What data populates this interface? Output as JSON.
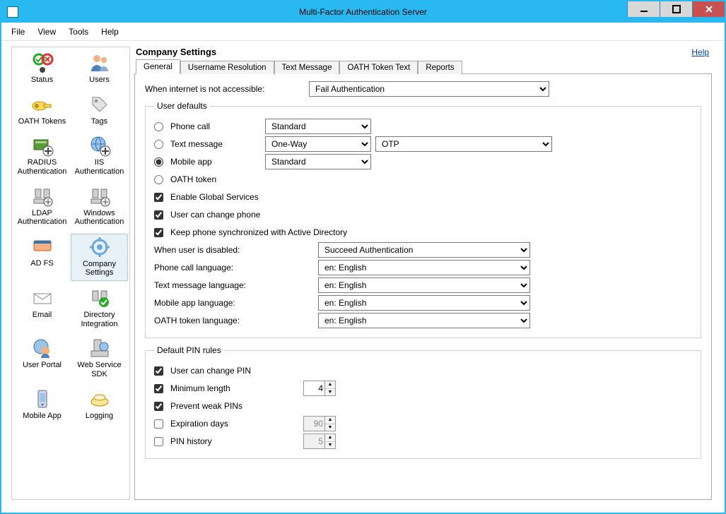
{
  "window": {
    "title": "Multi-Factor Authentication Server",
    "accent_color": "#29b8ef",
    "close_color": "#c75050"
  },
  "menu": {
    "items": [
      "File",
      "View",
      "Tools",
      "Help"
    ]
  },
  "sidebar": {
    "items": [
      {
        "label": "Status",
        "icon": "status"
      },
      {
        "label": "Users",
        "icon": "users"
      },
      {
        "label": "OATH Tokens",
        "icon": "oath"
      },
      {
        "label": "Tags",
        "icon": "tags"
      },
      {
        "label": "RADIUS\nAuthentication",
        "icon": "radius"
      },
      {
        "label": "IIS\nAuthentication",
        "icon": "iis"
      },
      {
        "label": "LDAP\nAuthentication",
        "icon": "ldap"
      },
      {
        "label": "Windows\nAuthentication",
        "icon": "windows"
      },
      {
        "label": "AD FS",
        "icon": "adfs"
      },
      {
        "label": "Company\nSettings",
        "icon": "company",
        "selected": true
      },
      {
        "label": "Email",
        "icon": "email"
      },
      {
        "label": "Directory\nIntegration",
        "icon": "directory"
      },
      {
        "label": "User Portal",
        "icon": "portal"
      },
      {
        "label": "Web Service\nSDK",
        "icon": "sdk"
      },
      {
        "label": "Mobile App",
        "icon": "mobile"
      },
      {
        "label": "Logging",
        "icon": "logging"
      }
    ]
  },
  "main": {
    "title": "Company Settings",
    "help_label": "Help",
    "tabs": [
      "General",
      "Username Resolution",
      "Text Message",
      "OATH Token Text",
      "Reports"
    ],
    "active_tab": 0
  },
  "general": {
    "internet_label": "When internet is not accessible:",
    "internet_value": "Fail Authentication",
    "user_defaults_legend": "User defaults",
    "methods": {
      "phone_call": {
        "label": "Phone call",
        "mode": "Standard"
      },
      "text_message": {
        "label": "Text message",
        "mode": "One-Way",
        "type": "OTP"
      },
      "mobile_app": {
        "label": "Mobile app",
        "mode": "Standard",
        "checked": true
      },
      "oath_token": {
        "label": "OATH token"
      }
    },
    "checks": {
      "global_services": {
        "label": "Enable Global Services",
        "checked": true
      },
      "change_phone": {
        "label": "User can change phone",
        "checked": true
      },
      "sync_ad": {
        "label": "Keep phone synchronized with Active Directory",
        "checked": true
      }
    },
    "disabled_label": "When user is disabled:",
    "disabled_value": "Succeed Authentication",
    "lang": {
      "phone": {
        "label": "Phone call language:",
        "value": "en: English"
      },
      "text": {
        "label": "Text message language:",
        "value": "en: English"
      },
      "app": {
        "label": "Mobile app language:",
        "value": "en: English"
      },
      "oath": {
        "label": "OATH token language:",
        "value": "en: English"
      }
    },
    "pin_legend": "Default PIN rules",
    "pin": {
      "change": {
        "label": "User can change PIN",
        "checked": true
      },
      "minlen": {
        "label": "Minimum length",
        "checked": true,
        "value": 4
      },
      "weak": {
        "label": "Prevent weak PINs",
        "checked": true
      },
      "expire": {
        "label": "Expiration days",
        "checked": false,
        "value": 90
      },
      "history": {
        "label": "PIN history",
        "checked": false,
        "value": 5
      }
    }
  }
}
